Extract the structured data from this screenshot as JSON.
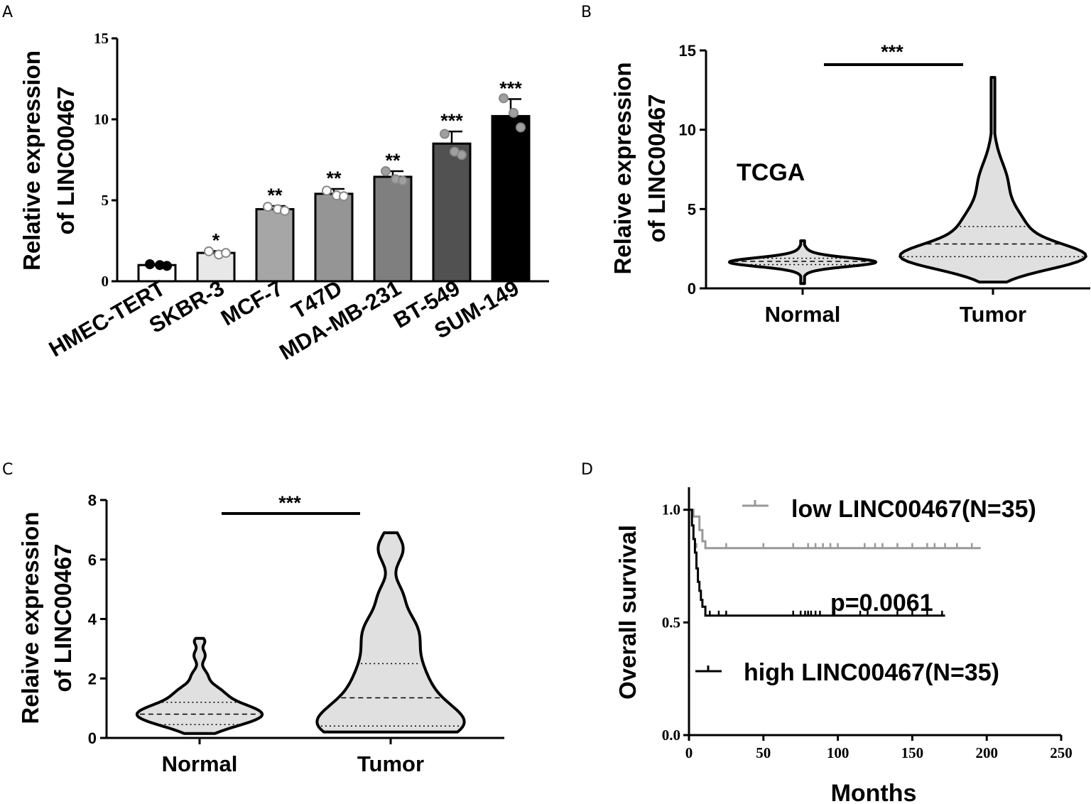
{
  "panels": {
    "A": "A",
    "B": "B",
    "C": "C",
    "D": "D"
  },
  "chart_data": [
    {
      "panel": "A",
      "type": "bar",
      "ylabel_lines": [
        "Relative expression",
        "of LINC00467"
      ],
      "ylim": [
        0,
        15
      ],
      "yticks": [
        "0",
        "5",
        "10",
        "15"
      ],
      "categories": [
        "HMEC-TERT",
        "SKBR-3",
        "MCF-7",
        "T47D",
        "MDA-MB-231",
        "BT-549",
        "SUM-149"
      ],
      "values": [
        1.0,
        1.75,
        4.45,
        5.4,
        6.45,
        8.5,
        10.2
      ],
      "errors": [
        0.05,
        0.12,
        0.2,
        0.3,
        0.35,
        0.75,
        1.05
      ],
      "significance": [
        "",
        "*",
        "**",
        "**",
        "**",
        "***",
        "***"
      ],
      "points": [
        [
          1.05,
          1.0,
          0.95
        ],
        [
          1.85,
          1.65,
          1.75
        ],
        [
          4.6,
          4.45,
          4.35
        ],
        [
          5.6,
          5.3,
          5.25
        ],
        [
          6.8,
          6.3,
          6.2
        ],
        [
          9.1,
          8.0,
          7.8
        ],
        [
          11.3,
          10.4,
          9.5
        ]
      ],
      "colors": [
        "#ffffff",
        "#e8e8e8",
        "#a6a6a6",
        "#959595",
        "#7f7f7f",
        "#515151",
        "#000000"
      ]
    },
    {
      "panel": "B",
      "type": "violin",
      "ylabel_lines": [
        "Relaive expression",
        "of LINC00467"
      ],
      "ylim": [
        0,
        15
      ],
      "yticks": [
        "0",
        "5",
        "10",
        "15"
      ],
      "categories": [
        "Normal",
        "Tumor"
      ],
      "annotation": "TCGA",
      "significance": "***",
      "groups": [
        {
          "name": "Normal",
          "min": 0.3,
          "max": 3.0,
          "median": 1.7,
          "q1": 1.5,
          "q3": 1.9
        },
        {
          "name": "Tumor",
          "min": 0.4,
          "max": 13.3,
          "median": 2.8,
          "q1": 2.0,
          "q3": 3.9
        }
      ]
    },
    {
      "panel": "C",
      "type": "violin",
      "ylabel_lines": [
        "Relaive expression",
        "of LINC00467"
      ],
      "ylim": [
        0,
        8
      ],
      "yticks": [
        "0",
        "2",
        "4",
        "6",
        "8"
      ],
      "categories": [
        "Normal",
        "Tumor"
      ],
      "significance": "***",
      "groups": [
        {
          "name": "Normal",
          "min": 0.15,
          "max": 3.35,
          "median": 0.8,
          "q1": 0.45,
          "q3": 1.2
        },
        {
          "name": "Tumor",
          "min": 0.2,
          "max": 6.9,
          "median": 1.35,
          "q1": 0.4,
          "q3": 2.5
        }
      ]
    },
    {
      "panel": "D",
      "type": "line",
      "subtype": "kaplan-meier",
      "ylabel": "Overall survival",
      "xlabel": "Months",
      "xlim": [
        0,
        250
      ],
      "ylim": [
        0,
        1
      ],
      "xticks": [
        "0",
        "50",
        "100",
        "150",
        "200",
        "250"
      ],
      "yticks": [
        "0.0",
        "0.5",
        "1.0"
      ],
      "pvalue": "p=0.0061",
      "series": [
        {
          "name": "low LINC00467(N=35)",
          "color": "#999999",
          "steps": [
            [
              0,
              1.0
            ],
            [
              3,
              1.0
            ],
            [
              3,
              0.97
            ],
            [
              7,
              0.97
            ],
            [
              7,
              0.91
            ],
            [
              9,
              0.91
            ],
            [
              9,
              0.86
            ],
            [
              11,
              0.86
            ],
            [
              11,
              0.83
            ],
            [
              196,
              0.83
            ]
          ],
          "censors": [
            5,
            25,
            50,
            70,
            80,
            85,
            90,
            95,
            100,
            118,
            125,
            130,
            140,
            150,
            160,
            165,
            172,
            180,
            190
          ]
        },
        {
          "name": "high LINC00467(N=35)",
          "color": "#000000",
          "steps": [
            [
              0,
              1.0
            ],
            [
              2,
              1.0
            ],
            [
              2,
              0.93
            ],
            [
              3,
              0.93
            ],
            [
              3,
              0.87
            ],
            [
              4,
              0.87
            ],
            [
              4,
              0.81
            ],
            [
              5,
              0.81
            ],
            [
              5,
              0.74
            ],
            [
              6,
              0.74
            ],
            [
              6,
              0.68
            ],
            [
              7,
              0.68
            ],
            [
              7,
              0.64
            ],
            [
              8,
              0.64
            ],
            [
              8,
              0.6
            ],
            [
              9,
              0.6
            ],
            [
              9,
              0.57
            ],
            [
              11,
              0.57
            ],
            [
              11,
              0.53
            ],
            [
              172,
              0.53
            ]
          ],
          "censors": [
            14,
            20,
            25,
            70,
            75,
            78,
            80,
            82,
            85,
            88,
            115,
            120,
            140,
            150,
            160,
            170
          ]
        }
      ]
    }
  ]
}
